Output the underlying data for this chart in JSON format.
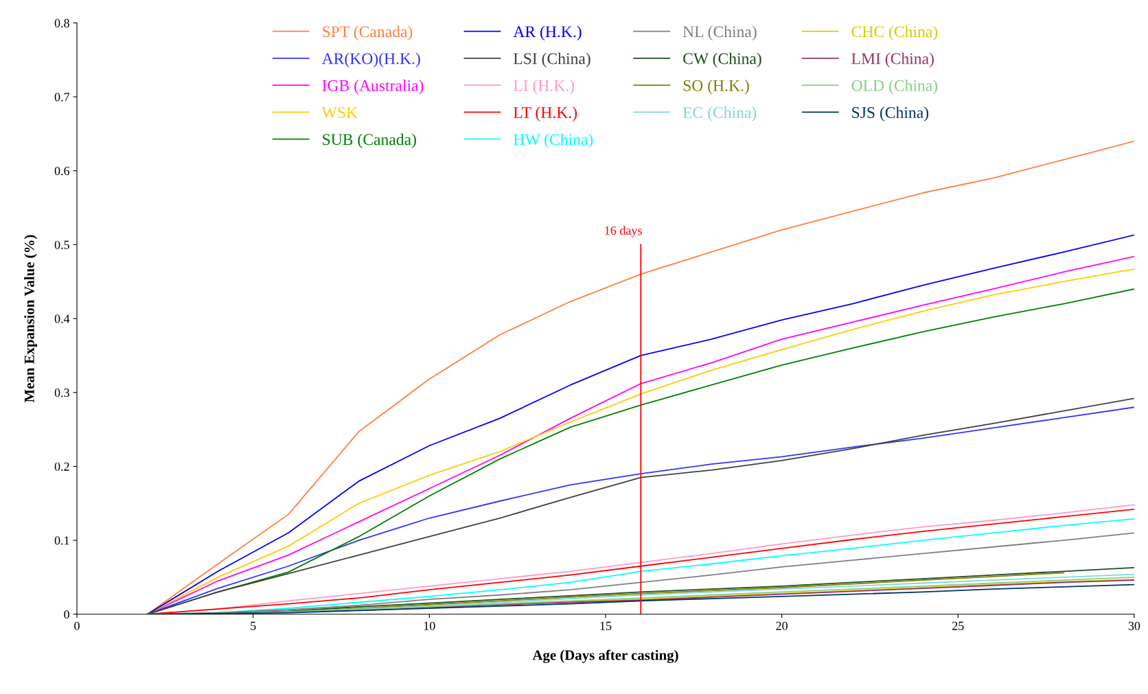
{
  "chart_data": {
    "type": "line",
    "xlabel": "Age (Days after casting)",
    "ylabel": "Mean Expansion Value (%)",
    "x": [
      2,
      4,
      6,
      8,
      10,
      12,
      14,
      16,
      18,
      20,
      22,
      24,
      26,
      28,
      30
    ],
    "xlim": [
      0,
      30
    ],
    "xticks": [
      0,
      5,
      10,
      15,
      20,
      25,
      30
    ],
    "ylim": [
      0,
      0.8
    ],
    "yticks": [
      0,
      0.1,
      0.2,
      0.3,
      0.4,
      0.5,
      0.6,
      0.7,
      0.8
    ],
    "grid": false,
    "legend": "top",
    "marker": "none",
    "line_style": "solid",
    "ref_lines": [
      {
        "axis": "x",
        "value": 16,
        "label": "16 days",
        "color": "#ff0000"
      }
    ],
    "series": [
      {
        "name": "SPT (Canada)",
        "color": "#ff8040",
        "values": [
          0,
          0.068,
          0.135,
          0.247,
          0.318,
          0.378,
          0.423,
          0.46,
          0.49,
          0.52,
          0.545,
          0.57,
          0.59,
          0.615,
          0.64
        ]
      },
      {
        "name": "AR(KO)(H.K.)",
        "color": "#3333ff",
        "values": [
          0,
          0.035,
          0.065,
          0.1,
          0.13,
          0.153,
          0.175,
          0.19,
          0.203,
          0.213,
          0.226,
          0.238,
          0.252,
          0.266,
          0.28
        ]
      },
      {
        "name": "IGB (Australia)",
        "color": "#ff00ff",
        "values": [
          0,
          0.045,
          0.08,
          0.125,
          0.17,
          0.215,
          0.265,
          0.312,
          0.34,
          0.372,
          0.395,
          0.418,
          0.44,
          0.463,
          0.484
        ]
      },
      {
        "name": "WSK",
        "color": "#ffcc00",
        "values": [
          0,
          0.05,
          0.092,
          0.15,
          0.188,
          0.22,
          0.26,
          0.298,
          0.33,
          0.358,
          0.385,
          0.41,
          0.432,
          0.45,
          0.467
        ]
      },
      {
        "name": "SUB (Canada)",
        "color": "#008000",
        "values": [
          0,
          0.03,
          0.057,
          0.105,
          0.16,
          0.21,
          0.253,
          0.283,
          0.31,
          0.337,
          0.36,
          0.382,
          0.402,
          0.42,
          0.44
        ]
      },
      {
        "name": "AR (H.K.)",
        "color": "#0000ff",
        "values": [
          0,
          0.058,
          0.11,
          0.18,
          0.228,
          0.265,
          0.31,
          0.35,
          0.372,
          0.398,
          0.42,
          0.445,
          0.468,
          0.49,
          0.513
        ]
      },
      {
        "name": "LSI (China)",
        "color": "#404040",
        "values": [
          0,
          0.03,
          0.055,
          0.08,
          0.105,
          0.13,
          0.158,
          0.185,
          0.195,
          0.208,
          0.224,
          0.242,
          0.258,
          0.275,
          0.292
        ]
      },
      {
        "name": "LI (H.K.)",
        "color": "#ff99cc",
        "values": [
          0,
          0.007,
          0.018,
          0.028,
          0.038,
          0.048,
          0.058,
          0.07,
          0.082,
          0.095,
          0.107,
          0.118,
          0.127,
          0.137,
          0.148
        ]
      },
      {
        "name": "LT (H.K.)",
        "color": "#ff0000",
        "values": [
          0,
          0.007,
          0.014,
          0.022,
          0.033,
          0.043,
          0.053,
          0.065,
          0.077,
          0.089,
          0.101,
          0.112,
          0.122,
          0.132,
          0.142
        ]
      },
      {
        "name": "HW (China)",
        "color": "#00ffff",
        "values": [
          0,
          0.002,
          0.008,
          0.016,
          0.024,
          0.033,
          0.043,
          0.058,
          0.068,
          0.079,
          0.089,
          0.1,
          0.11,
          0.12,
          0.129
        ]
      },
      {
        "name": "NL (China)",
        "color": "#808080",
        "values": [
          0,
          0.002,
          0.006,
          0.012,
          0.02,
          0.026,
          0.033,
          0.043,
          0.053,
          0.064,
          0.073,
          0.082,
          0.091,
          0.1,
          0.11
        ]
      },
      {
        "name": "CW (China)",
        "color": "#1f4d1f",
        "values": [
          0,
          0.001,
          0.004,
          0.01,
          0.015,
          0.02,
          0.025,
          0.03,
          0.034,
          0.038,
          0.043,
          0.048,
          0.053,
          0.058,
          0.063
        ]
      },
      {
        "name": "SO (H.K.)",
        "color": "#808000",
        "values": [
          null,
          null,
          0.003,
          0.008,
          0.013,
          0.018,
          0.023,
          0.028,
          0.032,
          0.036,
          0.041,
          0.046,
          0.051,
          0.056,
          null
        ]
      },
      {
        "name": "EC (China)",
        "color": "#80d8d8",
        "values": [
          0,
          0.001,
          0.003,
          0.007,
          0.011,
          0.016,
          0.021,
          0.026,
          0.03,
          0.034,
          0.038,
          0.042,
          0.046,
          0.05,
          0.054
        ]
      },
      {
        "name": "CHC (China)",
        "color": "#d8cc00",
        "values": [
          null,
          null,
          null,
          null,
          null,
          0.014,
          0.017,
          0.02,
          0.024,
          0.028,
          0.032,
          0.036,
          0.04,
          0.044,
          0.047
        ]
      },
      {
        "name": "LMI (China)",
        "color": "#993366",
        "values": [
          null,
          null,
          null,
          0.005,
          0.009,
          0.013,
          0.016,
          0.019,
          0.023,
          0.027,
          0.031,
          0.035,
          0.039,
          0.043,
          0.046
        ]
      },
      {
        "name": "OLD (China)",
        "color": "#88cc88",
        "values": [
          0,
          0.001,
          0.003,
          0.006,
          0.01,
          0.014,
          0.018,
          0.022,
          0.026,
          0.03,
          0.034,
          0.038,
          0.042,
          0.046,
          0.05
        ]
      },
      {
        "name": "SJS (China)",
        "color": "#003366",
        "values": [
          0,
          0.001,
          0.002,
          0.005,
          0.008,
          0.011,
          0.014,
          0.018,
          0.021,
          0.024,
          0.027,
          0.03,
          0.034,
          0.037,
          0.04
        ]
      }
    ]
  }
}
